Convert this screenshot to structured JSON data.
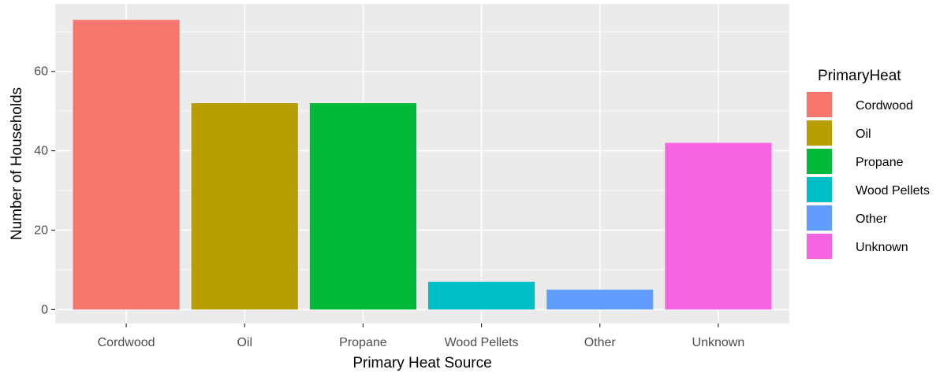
{
  "chart_data": {
    "type": "bar",
    "xlabel": "Primary Heat Source",
    "ylabel": "Number of Households",
    "ylim": [
      -3.5,
      77
    ],
    "yticks": [
      0,
      20,
      40,
      60
    ],
    "grid": true,
    "legend_title": "PrimaryHeat",
    "legend_position": "right",
    "categories": [
      "Cordwood",
      "Oil",
      "Propane",
      "Wood Pellets",
      "Other",
      "Unknown"
    ],
    "values": [
      73,
      52,
      52,
      7,
      5,
      42
    ],
    "colors": [
      "#F8766D",
      "#B79F00",
      "#00BA38",
      "#00BFC4",
      "#619CFF",
      "#F564E3"
    ],
    "panel_background": "#EBEBEB",
    "grid_color": "#FFFFFF"
  }
}
